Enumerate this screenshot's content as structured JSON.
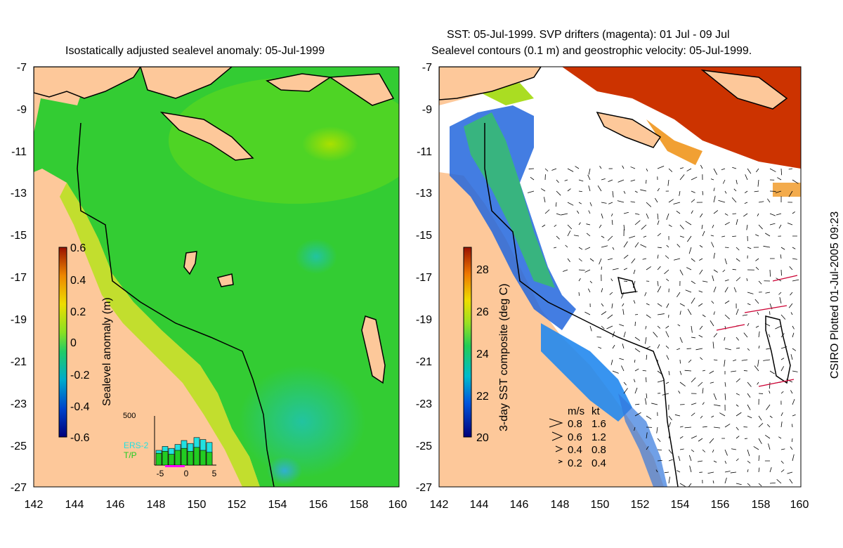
{
  "left_panel": {
    "title": "Isostatically adjusted sealevel anomaly: 05-Jul-1999",
    "x_ticks": [
      "142",
      "144",
      "146",
      "148",
      "150",
      "152",
      "154",
      "156",
      "158",
      "160"
    ],
    "y_ticks": [
      "-7",
      "-9",
      "-11",
      "-13",
      "-15",
      "-17",
      "-19",
      "-21",
      "-23",
      "-25",
      "-27"
    ],
    "colorbar": {
      "label": "Sealevel anomaly (m)",
      "ticks": [
        "0.6",
        "0.4",
        "0.2",
        "0",
        "-0.2",
        "-0.4",
        "-0.6"
      ]
    },
    "histogram": {
      "top_label": "500",
      "legend": [
        "ERS-2",
        "T/P"
      ],
      "x_ticks": [
        "-5",
        "0",
        "5"
      ],
      "ers2_values": [
        150,
        190,
        170,
        210,
        250,
        220,
        280,
        260,
        230
      ],
      "tp_values": [
        120,
        140,
        110,
        150,
        170,
        140,
        180,
        150,
        130
      ],
      "colors": {
        "ers2": "#22e0e0",
        "tp": "#22cc22",
        "marker": "#ff00ff"
      }
    }
  },
  "right_panel": {
    "title_line1": "SST: 05-Jul-1999. SVP drifters (magenta): 01 Jul - 09 Jul",
    "title_line2": "Sealevel contours (0.1 m) and geostrophic velocity: 05-Jul-1999.",
    "x_ticks": [
      "142",
      "144",
      "146",
      "148",
      "150",
      "152",
      "154",
      "156",
      "158",
      "160"
    ],
    "y_ticks": [
      "-7",
      "-9",
      "-11",
      "-13",
      "-15",
      "-17",
      "-19",
      "-21",
      "-23",
      "-25",
      "-27"
    ],
    "colorbar": {
      "label": "3-day SST composite (deg C)",
      "ticks": [
        "28",
        "26",
        "24",
        "22",
        "20"
      ]
    },
    "velocity_legend": {
      "header_ms": "m/s",
      "header_kt": "kt",
      "rows": [
        {
          "ms": "0.8",
          "kt": "1.6"
        },
        {
          "ms": "0.6",
          "kt": "1.2"
        },
        {
          "ms": "0.4",
          "kt": "0.8"
        },
        {
          "ms": "0.2",
          "kt": "0.4"
        }
      ]
    }
  },
  "credit": "CSIRO Plotted 01-Jul-2005 09:23",
  "colors": {
    "land": "#fdc89a",
    "sea_green": "#33cc33",
    "coast": "#000000",
    "sst_warm": "#cc3300",
    "drifter": "#cc0033"
  }
}
